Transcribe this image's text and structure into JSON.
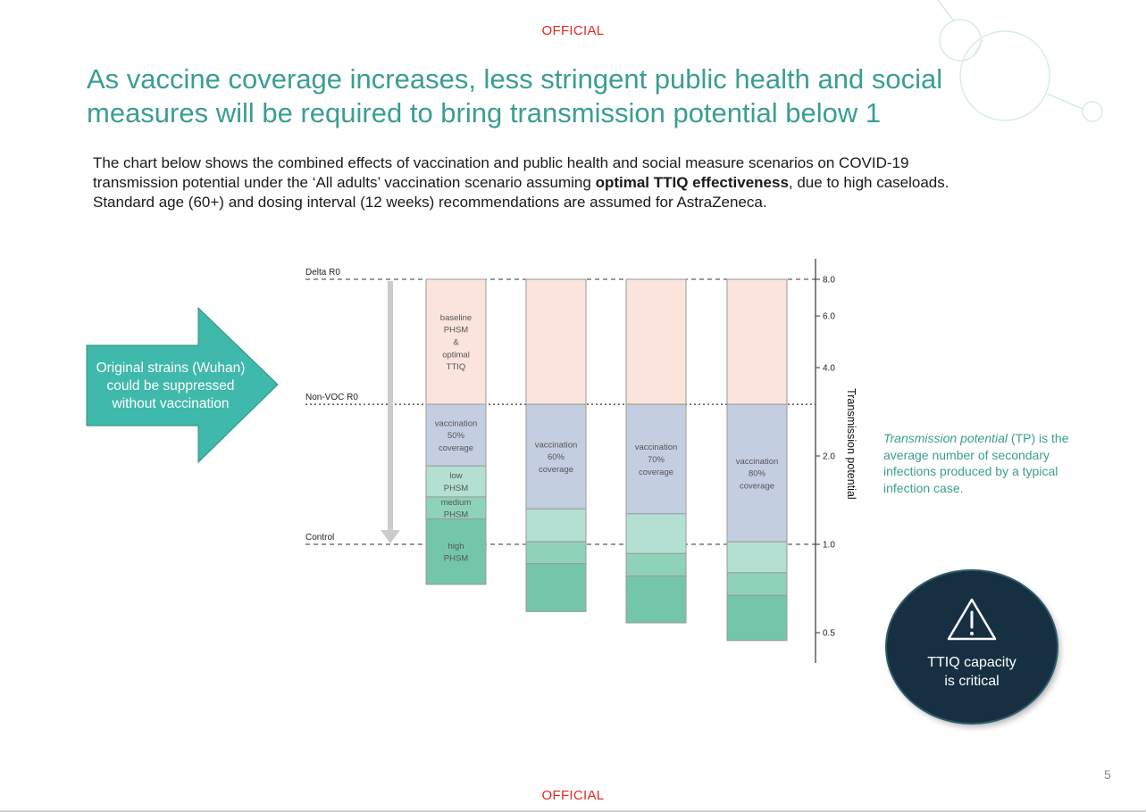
{
  "header": {
    "classification": "OFFICIAL"
  },
  "footer": {
    "classification": "OFFICIAL",
    "page_number": "5"
  },
  "title": "As vaccine coverage increases, less stringent public health and social measures will be required to bring transmission potential below 1",
  "intro": {
    "part1": "The chart below shows the combined effects of vaccination and public health and social measure scenarios on COVID-19 transmission potential under the ‘All adults’ vaccination scenario assuming ",
    "bold": "optimal TTIQ effectiveness",
    "part2": ", due to high caseloads. Standard age (60+) and dosing interval (12 weeks) recommendations are assumed for AstraZeneca."
  },
  "arrow_callout": {
    "text": "Original strains (Wuhan) could be suppressed without vaccination"
  },
  "tp_definition": {
    "term": "Transmission potential",
    "rest": " (TP) is the average number of secondary infections produced by a typical infection case."
  },
  "ttiq_callout": {
    "icon": "warning-icon",
    "line1": "TTIQ capacity",
    "line2": "is critical"
  },
  "colors": {
    "accent": "#3a9e92",
    "official": "#e0281e",
    "baseline": "#fbe4dc",
    "vaccination": "#c4cee1",
    "low": "#b3e0d2",
    "medium": "#8fd2ba",
    "high": "#74c6aa",
    "circle": "#163042"
  },
  "chart_data": {
    "type": "bar",
    "stacked": true,
    "scale": "log",
    "ylabel": "Transmission potential",
    "yticks": [
      0.5,
      1.0,
      2.0,
      4.0,
      6.0,
      8.0
    ],
    "ylim": [
      0.42,
      8.0
    ],
    "reference_lines": [
      {
        "label": "Delta R0",
        "value": 8.0,
        "style": "dashed"
      },
      {
        "label": "Non-VOC R0",
        "value": 3.0,
        "style": "dotted"
      },
      {
        "label": "Control",
        "value": 1.0,
        "style": "dashed"
      }
    ],
    "categories": [
      "50% coverage",
      "60% coverage",
      "70% coverage",
      "80% coverage"
    ],
    "series": [
      {
        "key": "baseline",
        "color": "#fbe4dc",
        "top": [
          8.0,
          8.0,
          8.0,
          8.0
        ],
        "bottom": [
          3.0,
          3.0,
          3.0,
          3.0
        ]
      },
      {
        "key": "vaccination",
        "color": "#c4cee1",
        "top": [
          3.0,
          3.0,
          3.0,
          3.0
        ],
        "bottom": [
          1.85,
          1.32,
          1.27,
          1.02
        ]
      },
      {
        "key": "low",
        "color": "#b3e0d2",
        "top": [
          1.85,
          1.32,
          1.27,
          1.02
        ],
        "bottom": [
          1.45,
          1.02,
          0.93,
          0.8
        ]
      },
      {
        "key": "medium",
        "color": "#8fd2ba",
        "top": [
          1.45,
          1.02,
          0.93,
          0.8
        ],
        "bottom": [
          1.22,
          0.86,
          0.78,
          0.67
        ]
      },
      {
        "key": "high",
        "color": "#74c6aa",
        "top": [
          1.22,
          0.86,
          0.78,
          0.67
        ],
        "bottom": [
          0.73,
          0.59,
          0.54,
          0.47
        ]
      }
    ],
    "bar_labels": [
      {
        "bar": 0,
        "series": "baseline",
        "lines": [
          "baseline",
          "PHSM",
          "&",
          "optimal",
          "TTIQ"
        ]
      },
      {
        "bar": 0,
        "series": "vaccination",
        "lines": [
          "vaccination",
          "50%",
          "coverage"
        ]
      },
      {
        "bar": 0,
        "series": "low",
        "lines": [
          "low",
          "PHSM"
        ]
      },
      {
        "bar": 0,
        "series": "medium",
        "lines": [
          "medium",
          "PHSM"
        ]
      },
      {
        "bar": 0,
        "series": "high",
        "lines": [
          "high",
          "PHSM"
        ]
      },
      {
        "bar": 1,
        "series": "vaccination",
        "lines": [
          "vaccination",
          "60%",
          "coverage"
        ]
      },
      {
        "bar": 2,
        "series": "vaccination",
        "lines": [
          "vaccination",
          "70%",
          "coverage"
        ]
      },
      {
        "bar": 3,
        "series": "vaccination",
        "lines": [
          "vaccination",
          "80%",
          "coverage"
        ]
      }
    ]
  }
}
